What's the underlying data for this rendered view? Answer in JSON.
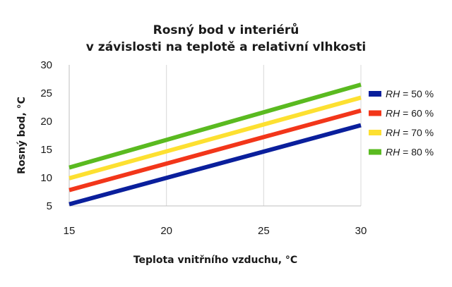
{
  "chart_data": {
    "type": "line",
    "title": "Rosný bod v interiérů",
    "subtitle": "v závislosti na teplotě a relativní vlhkosti",
    "xlabel": "Teplota vnitřního vzduchu, °C",
    "ylabel": "Rosný bod, °C",
    "xlim": [
      15,
      30
    ],
    "ylim": [
      5,
      30
    ],
    "x_ticks": [
      15,
      20,
      25,
      30
    ],
    "y_ticks": [
      5,
      10,
      15,
      20,
      25,
      30
    ],
    "grid": "vertical",
    "legend_position": "right",
    "series": [
      {
        "name_var": "RH",
        "name_rest": " = 50 %",
        "color": "#0a1f9c",
        "x": [
          15,
          30
        ],
        "values": [
          5.3,
          19.3
        ]
      },
      {
        "name_var": "RH",
        "name_rest": " = 60 %",
        "color": "#f2361a",
        "x": [
          15,
          30
        ],
        "values": [
          7.8,
          21.9
        ]
      },
      {
        "name_var": "RH",
        "name_rest": " = 70 %",
        "color": "#fde031",
        "x": [
          15,
          30
        ],
        "values": [
          9.9,
          24.2
        ]
      },
      {
        "name_var": "RH",
        "name_rest": " = 80 %",
        "color": "#5aba20",
        "x": [
          15,
          30
        ],
        "values": [
          11.8,
          26.5
        ]
      }
    ]
  }
}
